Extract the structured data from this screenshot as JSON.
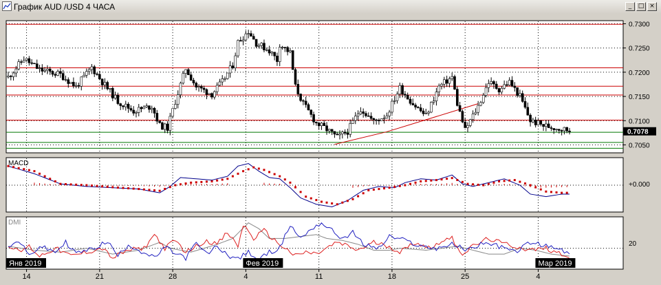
{
  "window": {
    "title": "График AUD /USD  4 ЧАСА",
    "buttons": {
      "minimize": "_",
      "maximize": "□",
      "close": "×"
    }
  },
  "colors": {
    "background": "#ffffff",
    "candles": "#000000",
    "resistance": "#cc0000",
    "support": "#007700",
    "macd_line": "#00008b",
    "macd_signal": "#cc0000",
    "dmi_plus": "#2020c0",
    "dmi_minus": "#dd2020",
    "adx": "#888888"
  },
  "chart_data": [
    {
      "type": "candlestick",
      "title": "",
      "current_price": "0.7078",
      "y_ticks": [
        "0.7300",
        "0.7250",
        "0.7200",
        "0.7150",
        "0.7100",
        "0.7050"
      ],
      "ylim": [
        0.7035,
        0.7305
      ],
      "horizontal_lines": [
        {
          "price": 0.7299,
          "color": "resistance"
        },
        {
          "price": 0.7209,
          "color": "resistance"
        },
        {
          "price": 0.7171,
          "color": "resistance"
        },
        {
          "price": 0.7153,
          "color": "resistance"
        },
        {
          "price": 0.7101,
          "color": "resistance"
        },
        {
          "price": 0.7076,
          "color": "support"
        },
        {
          "price": 0.7055,
          "color": "support"
        },
        {
          "price": 0.7043,
          "color": "support"
        }
      ],
      "trendlines": [
        {
          "from_bar": 125,
          "from_price": 0.7051,
          "to_bar": 145,
          "to_price": 0.7077
        },
        {
          "from_bar": 145,
          "from_price": 0.7077,
          "to_bar": 180,
          "to_price": 0.7135
        }
      ],
      "close_path": [
        [
          0,
          0.719
        ],
        [
          6,
          0.7228
        ],
        [
          12,
          0.7205
        ],
        [
          20,
          0.7195
        ],
        [
          26,
          0.717
        ],
        [
          32,
          0.721
        ],
        [
          36,
          0.718
        ],
        [
          42,
          0.714
        ],
        [
          48,
          0.712
        ],
        [
          55,
          0.713
        ],
        [
          58,
          0.709
        ],
        [
          61,
          0.7085
        ],
        [
          64,
          0.714
        ],
        [
          68,
          0.7208
        ],
        [
          72,
          0.717
        ],
        [
          78,
          0.7155
        ],
        [
          82,
          0.718
        ],
        [
          86,
          0.7215
        ],
        [
          88,
          0.7262
        ],
        [
          92,
          0.7285
        ],
        [
          95,
          0.726
        ],
        [
          100,
          0.7245
        ],
        [
          103,
          0.7225
        ],
        [
          104,
          0.7258
        ],
        [
          108,
          0.724
        ],
        [
          110,
          0.717
        ],
        [
          113,
          0.7135
        ],
        [
          118,
          0.7095
        ],
        [
          122,
          0.7082
        ],
        [
          126,
          0.7065
        ],
        [
          130,
          0.7078
        ],
        [
          135,
          0.7125
        ],
        [
          140,
          0.7098
        ],
        [
          145,
          0.7112
        ],
        [
          150,
          0.7168
        ],
        [
          155,
          0.7135
        ],
        [
          160,
          0.711
        ],
        [
          165,
          0.717
        ],
        [
          170,
          0.719
        ],
        [
          172,
          0.7135
        ],
        [
          175,
          0.708
        ],
        [
          180,
          0.713
        ],
        [
          184,
          0.718
        ],
        [
          188,
          0.7165
        ],
        [
          192,
          0.718
        ],
        [
          196,
          0.715
        ],
        [
          200,
          0.71
        ],
        [
          205,
          0.709
        ],
        [
          210,
          0.7085
        ],
        [
          215,
          0.708
        ]
      ]
    },
    {
      "type": "line",
      "title": "MACD",
      "zero_label": "+0.000",
      "ylim": [
        -1,
        1
      ],
      "series": [
        {
          "role": "macd",
          "path": [
            [
              0,
              0.75
            ],
            [
              10,
              0.45
            ],
            [
              20,
              0.05
            ],
            [
              30,
              -0.05
            ],
            [
              40,
              -0.1
            ],
            [
              50,
              -0.15
            ],
            [
              58,
              -0.3
            ],
            [
              62,
              -0.05
            ],
            [
              66,
              0.3
            ],
            [
              72,
              0.25
            ],
            [
              78,
              0.2
            ],
            [
              84,
              0.35
            ],
            [
              88,
              0.75
            ],
            [
              92,
              0.85
            ],
            [
              96,
              0.55
            ],
            [
              100,
              0.3
            ],
            [
              104,
              0.25
            ],
            [
              108,
              -0.1
            ],
            [
              112,
              -0.5
            ],
            [
              118,
              -0.75
            ],
            [
              124,
              -0.85
            ],
            [
              130,
              -0.6
            ],
            [
              136,
              -0.2
            ],
            [
              142,
              -0.05
            ],
            [
              148,
              -0.1
            ],
            [
              152,
              0.1
            ],
            [
              158,
              0.25
            ],
            [
              164,
              0.2
            ],
            [
              170,
              0.4
            ],
            [
              174,
              0.05
            ],
            [
              178,
              -0.05
            ],
            [
              184,
              0.1
            ],
            [
              190,
              0.25
            ],
            [
              196,
              0.0
            ],
            [
              200,
              -0.35
            ],
            [
              206,
              -0.45
            ],
            [
              212,
              -0.35
            ],
            [
              215,
              -0.35
            ]
          ]
        },
        {
          "role": "signal",
          "path": [
            [
              0,
              0.75
            ],
            [
              10,
              0.55
            ],
            [
              20,
              0.05
            ],
            [
              30,
              -0.0
            ],
            [
              40,
              -0.08
            ],
            [
              50,
              -0.15
            ],
            [
              58,
              -0.22
            ],
            [
              64,
              0.0
            ],
            [
              70,
              0.1
            ],
            [
              78,
              0.15
            ],
            [
              84,
              0.25
            ],
            [
              90,
              0.55
            ],
            [
              94,
              0.7
            ],
            [
              98,
              0.6
            ],
            [
              104,
              0.35
            ],
            [
              108,
              0.1
            ],
            [
              114,
              -0.45
            ],
            [
              120,
              -0.65
            ],
            [
              126,
              -0.75
            ],
            [
              132,
              -0.55
            ],
            [
              138,
              -0.2
            ],
            [
              146,
              -0.1
            ],
            [
              152,
              0.0
            ],
            [
              158,
              0.15
            ],
            [
              164,
              0.2
            ],
            [
              170,
              0.28
            ],
            [
              176,
              0.05
            ],
            [
              182,
              0.0
            ],
            [
              188,
              0.15
            ],
            [
              194,
              0.2
            ],
            [
              200,
              0.0
            ],
            [
              206,
              -0.25
            ],
            [
              212,
              -0.3
            ],
            [
              215,
              -0.3
            ]
          ]
        }
      ]
    },
    {
      "type": "line",
      "title": "DMI",
      "y_tick": "20",
      "ylim": [
        0,
        50
      ],
      "series": [
        {
          "role": "plus_di",
          "path": [
            [
              0,
              20
            ],
            [
              4,
              28
            ],
            [
              8,
              12
            ],
            [
              12,
              22
            ],
            [
              18,
              16
            ],
            [
              22,
              26
            ],
            [
              26,
              15
            ],
            [
              32,
              19
            ],
            [
              38,
              27
            ],
            [
              42,
              12
            ],
            [
              46,
              24
            ],
            [
              50,
              18
            ],
            [
              56,
              10
            ],
            [
              60,
              21
            ],
            [
              64,
              15
            ],
            [
              68,
              10
            ],
            [
              72,
              25
            ],
            [
              76,
              14
            ],
            [
              80,
              22
            ],
            [
              84,
              13
            ],
            [
              88,
              9
            ],
            [
              92,
              16
            ],
            [
              96,
              8
            ],
            [
              100,
              16
            ],
            [
              104,
              20
            ],
            [
              108,
              44
            ],
            [
              112,
              30
            ],
            [
              116,
              40
            ],
            [
              120,
              46
            ],
            [
              124,
              38
            ],
            [
              128,
              30
            ],
            [
              132,
              36
            ],
            [
              136,
              24
            ],
            [
              142,
              20
            ],
            [
              146,
              32
            ],
            [
              152,
              28
            ],
            [
              158,
              22
            ],
            [
              164,
              20
            ],
            [
              170,
              24
            ],
            [
              176,
              18
            ],
            [
              182,
              26
            ],
            [
              188,
              22
            ],
            [
              194,
              16
            ],
            [
              200,
              26
            ],
            [
              206,
              22
            ],
            [
              212,
              18
            ],
            [
              215,
              14
            ]
          ]
        },
        {
          "role": "minus_di",
          "path": [
            [
              0,
              24
            ],
            [
              4,
              16
            ],
            [
              8,
              22
            ],
            [
              12,
              12
            ],
            [
              18,
              20
            ],
            [
              24,
              12
            ],
            [
              30,
              16
            ],
            [
              36,
              20
            ],
            [
              40,
              10
            ],
            [
              46,
              18
            ],
            [
              52,
              20
            ],
            [
              56,
              34
            ],
            [
              60,
              20
            ],
            [
              64,
              28
            ],
            [
              68,
              16
            ],
            [
              72,
              22
            ],
            [
              76,
              28
            ],
            [
              80,
              24
            ],
            [
              84,
              36
            ],
            [
              88,
              22
            ],
            [
              90,
              44
            ],
            [
              94,
              30
            ],
            [
              98,
              38
            ],
            [
              102,
              28
            ],
            [
              106,
              20
            ],
            [
              110,
              12
            ],
            [
              114,
              16
            ],
            [
              118,
              14
            ],
            [
              122,
              20
            ],
            [
              126,
              26
            ],
            [
              130,
              22
            ],
            [
              134,
              18
            ],
            [
              140,
              26
            ],
            [
              146,
              22
            ],
            [
              150,
              16
            ],
            [
              156,
              26
            ],
            [
              162,
              20
            ],
            [
              166,
              28
            ],
            [
              170,
              30
            ],
            [
              174,
              14
            ],
            [
              178,
              22
            ],
            [
              184,
              30
            ],
            [
              188,
              26
            ],
            [
              194,
              22
            ],
            [
              200,
              18
            ],
            [
              206,
              20
            ],
            [
              212,
              14
            ],
            [
              215,
              12
            ]
          ]
        },
        {
          "role": "adx",
          "path": [
            [
              0,
              22
            ],
            [
              10,
              18
            ],
            [
              20,
              16
            ],
            [
              30,
              20
            ],
            [
              40,
              14
            ],
            [
              50,
              18
            ],
            [
              58,
              26
            ],
            [
              62,
              20
            ],
            [
              70,
              16
            ],
            [
              80,
              24
            ],
            [
              86,
              30
            ],
            [
              92,
              46
            ],
            [
              96,
              40
            ],
            [
              100,
              30
            ],
            [
              106,
              30
            ],
            [
              112,
              32
            ],
            [
              118,
              34
            ],
            [
              122,
              30
            ],
            [
              128,
              28
            ],
            [
              134,
              24
            ],
            [
              140,
              18
            ],
            [
              146,
              18
            ],
            [
              150,
              20
            ],
            [
              160,
              18
            ],
            [
              166,
              20
            ],
            [
              172,
              22
            ],
            [
              178,
              18
            ],
            [
              184,
              14
            ],
            [
              190,
              14
            ],
            [
              196,
              20
            ],
            [
              202,
              18
            ],
            [
              208,
              14
            ],
            [
              215,
              12
            ]
          ]
        }
      ]
    }
  ],
  "time_axis": {
    "ticks": [
      {
        "bar": 7,
        "label": "14"
      },
      {
        "bar": 35,
        "label": "21"
      },
      {
        "bar": 63,
        "label": "28"
      },
      {
        "bar": 91,
        "label": "4"
      },
      {
        "bar": 119,
        "label": "11"
      },
      {
        "bar": 147,
        "label": "18"
      },
      {
        "bar": 175,
        "label": "25"
      },
      {
        "bar": 203,
        "label": "4"
      }
    ],
    "month_markers": [
      {
        "bar": 0,
        "label": "Янв 2019"
      },
      {
        "bar": 91,
        "label": "Фев 2019"
      },
      {
        "bar": 203,
        "label": "Мар 2019"
      }
    ]
  }
}
